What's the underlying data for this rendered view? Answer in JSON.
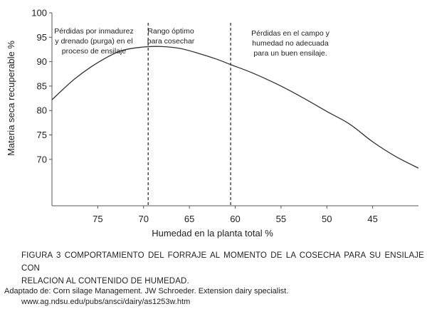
{
  "chart_data": {
    "type": "line",
    "xlabel": "Humedad en la planta total %",
    "ylabel": "Materia seca recuperable %",
    "x_ticks": [
      75,
      70,
      65,
      60,
      55,
      50,
      45
    ],
    "y_ticks": [
      70,
      75,
      80,
      85,
      90,
      95,
      100
    ],
    "xlim": [
      80,
      40
    ],
    "ylim": [
      60.5,
      100
    ],
    "x_reversed": true,
    "grid": false,
    "series": [
      {
        "x": [
          80,
          77.5,
          75,
          72.5,
          70,
          68,
          66,
          64,
          62,
          60.5,
          58,
          55,
          52.5,
          50,
          47.5,
          45,
          42.5,
          40
        ],
        "y": [
          82.2,
          86.5,
          89.8,
          92.2,
          93.0,
          93.1,
          92.7,
          91.7,
          90.5,
          89.4,
          87.6,
          85.0,
          82.5,
          79.8,
          77.2,
          73.6,
          70.6,
          68.2
        ]
      }
    ],
    "vlines": [
      69.5,
      60.5
    ],
    "annotations": [
      {
        "lines": [
          "Pérdidas por inmadurez",
          "y drenado (purga) en el",
          "proceso de ensilaje"
        ]
      },
      {
        "lines": [
          "Rango óptimo",
          "para cosechar"
        ]
      },
      {
        "lines": [
          "Pérdidas en el campo y",
          "humedad no adecuada",
          "para un buen ensilaje."
        ]
      }
    ]
  },
  "caption": {
    "line1": "FIGURA 3 COMPORTAMIENTO DEL FORRAJE AL MOMENTO DE LA COSECHA PARA SU ENSILAJE CON",
    "line2": "RELACION AL CONTENIDO DE HUMEDAD."
  },
  "source": {
    "line1": "Adaptado de: Corn silage Management. JW Schroeder. Extension dairy specialist.",
    "line2": "www.ag.ndsu.edu/pubs/ansci/dairy/as1253w.htm"
  }
}
